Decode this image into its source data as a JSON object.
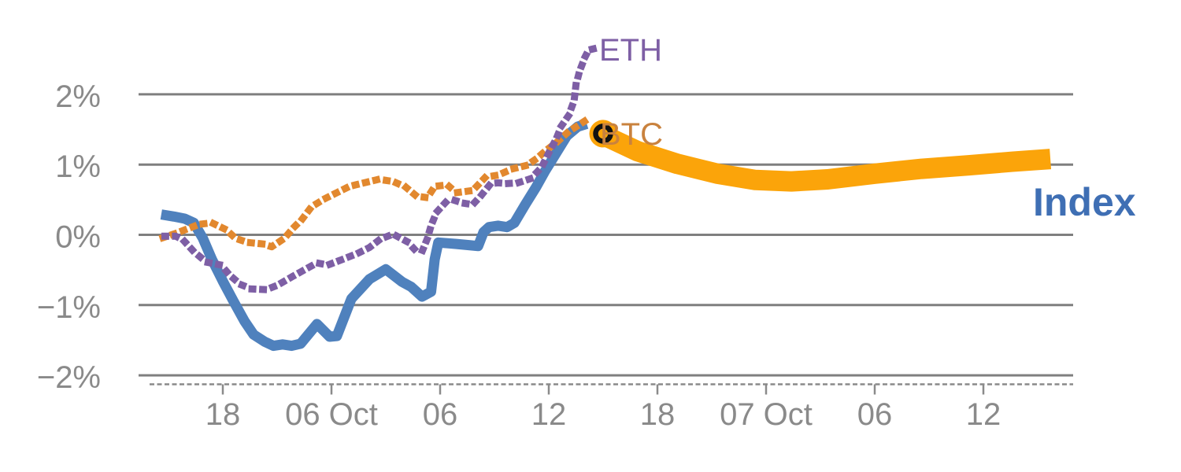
{
  "chart_data": {
    "type": "line",
    "title": "",
    "xlabel": "",
    "ylabel": "",
    "x_axis": {
      "unit": "time, 6-hour ticks",
      "tick_positions_hours": [
        6,
        12,
        18,
        24,
        30,
        36,
        42,
        48
      ],
      "tick_labels": [
        "18",
        "06 Oct",
        "06",
        "12",
        "18",
        "07 Oct",
        "06",
        "12"
      ],
      "range_hours": [
        1.3,
        53.0
      ],
      "axis_style": "dashed-baseline-with-ticks"
    },
    "y_axis": {
      "unit": "percent change",
      "tick_values": [
        2,
        1,
        0,
        -1,
        -2
      ],
      "tick_labels": [
        "2%",
        "1%",
        "0%",
        "−1%",
        "−2%"
      ],
      "range": [
        -2.2,
        2.9
      ],
      "grid": true
    },
    "series": [
      {
        "name": "Index",
        "color": "#4f81bd",
        "style": "solid",
        "stroke_width": 13,
        "points": [
          [
            2.6,
            0.29
          ],
          [
            3.3,
            0.26
          ],
          [
            3.9,
            0.23
          ],
          [
            4.4,
            0.17
          ],
          [
            4.9,
            -0.05
          ],
          [
            5.4,
            -0.35
          ],
          [
            6.0,
            -0.66
          ],
          [
            6.6,
            -0.95
          ],
          [
            7.2,
            -1.23
          ],
          [
            7.7,
            -1.42
          ],
          [
            8.3,
            -1.52
          ],
          [
            8.8,
            -1.58
          ],
          [
            9.3,
            -1.56
          ],
          [
            9.8,
            -1.58
          ],
          [
            10.3,
            -1.55
          ],
          [
            11.2,
            -1.27
          ],
          [
            11.9,
            -1.45
          ],
          [
            12.3,
            -1.44
          ],
          [
            13.1,
            -0.91
          ],
          [
            14.1,
            -0.63
          ],
          [
            15.0,
            -0.49
          ],
          [
            15.9,
            -0.67
          ],
          [
            16.4,
            -0.74
          ],
          [
            17.0,
            -0.88
          ],
          [
            17.5,
            -0.81
          ],
          [
            17.7,
            -0.35
          ],
          [
            17.9,
            -0.11
          ],
          [
            18.4,
            -0.12
          ],
          [
            18.9,
            -0.13
          ],
          [
            19.7,
            -0.15
          ],
          [
            20.1,
            -0.16
          ],
          [
            20.4,
            0.04
          ],
          [
            20.7,
            0.11
          ],
          [
            21.2,
            0.13
          ],
          [
            21.7,
            0.11
          ],
          [
            22.1,
            0.17
          ],
          [
            22.7,
            0.43
          ],
          [
            23.3,
            0.68
          ],
          [
            23.8,
            0.91
          ],
          [
            24.4,
            1.16
          ],
          [
            25.0,
            1.41
          ],
          [
            25.6,
            1.54
          ],
          [
            26.1,
            1.58
          ]
        ]
      },
      {
        "name": "BTC",
        "color": "#e2882e",
        "style": "dotted",
        "stroke_width": 9,
        "points": [
          [
            2.7,
            -0.04
          ],
          [
            3.4,
            0.02
          ],
          [
            3.8,
            0.06
          ],
          [
            4.7,
            0.15
          ],
          [
            5.4,
            0.17
          ],
          [
            6.2,
            0.07
          ],
          [
            6.7,
            -0.05
          ],
          [
            7.4,
            -0.11
          ],
          [
            8.2,
            -0.13
          ],
          [
            8.7,
            -0.17
          ],
          [
            9.4,
            -0.05
          ],
          [
            9.9,
            0.1
          ],
          [
            10.4,
            0.23
          ],
          [
            10.9,
            0.4
          ],
          [
            11.6,
            0.51
          ],
          [
            12.3,
            0.6
          ],
          [
            13.0,
            0.69
          ],
          [
            13.8,
            0.74
          ],
          [
            14.6,
            0.79
          ],
          [
            15.4,
            0.76
          ],
          [
            16.1,
            0.68
          ],
          [
            16.7,
            0.55
          ],
          [
            17.3,
            0.53
          ],
          [
            17.7,
            0.69
          ],
          [
            18.4,
            0.71
          ],
          [
            18.9,
            0.6
          ],
          [
            19.8,
            0.63
          ],
          [
            20.5,
            0.82
          ],
          [
            21.2,
            0.85
          ],
          [
            22.0,
            0.94
          ],
          [
            22.8,
            0.99
          ],
          [
            23.3,
            1.08
          ],
          [
            23.8,
            1.19
          ],
          [
            24.5,
            1.33
          ],
          [
            25.1,
            1.47
          ],
          [
            25.7,
            1.57
          ],
          [
            26.4,
            1.69
          ]
        ]
      },
      {
        "name": "ETH",
        "color": "#7e5fa5",
        "style": "dotted",
        "stroke_width": 9,
        "points": [
          [
            2.8,
            -0.02
          ],
          [
            3.4,
            -0.02
          ],
          [
            3.8,
            -0.07
          ],
          [
            4.4,
            -0.24
          ],
          [
            5.1,
            -0.39
          ],
          [
            5.9,
            -0.43
          ],
          [
            6.4,
            -0.58
          ],
          [
            7.0,
            -0.71
          ],
          [
            7.6,
            -0.77
          ],
          [
            8.4,
            -0.78
          ],
          [
            9.0,
            -0.72
          ],
          [
            9.8,
            -0.6
          ],
          [
            10.5,
            -0.5
          ],
          [
            11.2,
            -0.4
          ],
          [
            11.8,
            -0.43
          ],
          [
            12.7,
            -0.34
          ],
          [
            13.4,
            -0.27
          ],
          [
            14.1,
            -0.18
          ],
          [
            14.7,
            -0.06
          ],
          [
            15.4,
            0.01
          ],
          [
            16.2,
            -0.1
          ],
          [
            16.6,
            -0.21
          ],
          [
            17.0,
            -0.24
          ],
          [
            17.3,
            -0.05
          ],
          [
            17.5,
            0.13
          ],
          [
            17.8,
            0.32
          ],
          [
            18.3,
            0.46
          ],
          [
            18.8,
            0.49
          ],
          [
            19.3,
            0.45
          ],
          [
            19.8,
            0.43
          ],
          [
            20.3,
            0.57
          ],
          [
            20.8,
            0.73
          ],
          [
            21.2,
            0.74
          ],
          [
            21.7,
            0.73
          ],
          [
            22.3,
            0.74
          ],
          [
            23.0,
            0.8
          ],
          [
            23.6,
            0.96
          ],
          [
            24.1,
            1.22
          ],
          [
            24.4,
            1.36
          ],
          [
            24.7,
            1.55
          ],
          [
            25.1,
            1.7
          ],
          [
            25.4,
            1.91
          ],
          [
            25.5,
            2.13
          ],
          [
            25.7,
            2.33
          ],
          [
            26.0,
            2.53
          ],
          [
            26.2,
            2.63
          ],
          [
            26.5,
            2.65
          ]
        ]
      },
      {
        "name": "Index forecast band",
        "color": "#fba40a",
        "style": "solid",
        "stroke_width": 26,
        "points": [
          [
            27.0,
            1.42
          ],
          [
            28.9,
            1.19
          ],
          [
            31.1,
            1.01
          ],
          [
            33.3,
            0.87
          ],
          [
            35.4,
            0.78
          ],
          [
            37.4,
            0.76
          ],
          [
            39.4,
            0.79
          ],
          [
            42.0,
            0.87
          ],
          [
            44.6,
            0.94
          ],
          [
            47.2,
            0.99
          ],
          [
            49.6,
            1.04
          ],
          [
            51.7,
            1.08
          ]
        ]
      }
    ],
    "marker": {
      "name": "current-point-marker",
      "x_hours": 27.0,
      "y_pct": 1.44,
      "disc_color": "#fba40a",
      "ring_color": "#111111"
    },
    "end_labels": {
      "eth": {
        "text": "ETH",
        "color": "#7e5fa5"
      },
      "btc": {
        "text": "BTC",
        "color": "#c9823e"
      },
      "index": {
        "text": "Index",
        "color": "#3f6fb4"
      }
    },
    "legend_position": "inline-end-of-line",
    "grid_color": "#7f7f7f",
    "tick_label_color": "#8a8a8a"
  }
}
